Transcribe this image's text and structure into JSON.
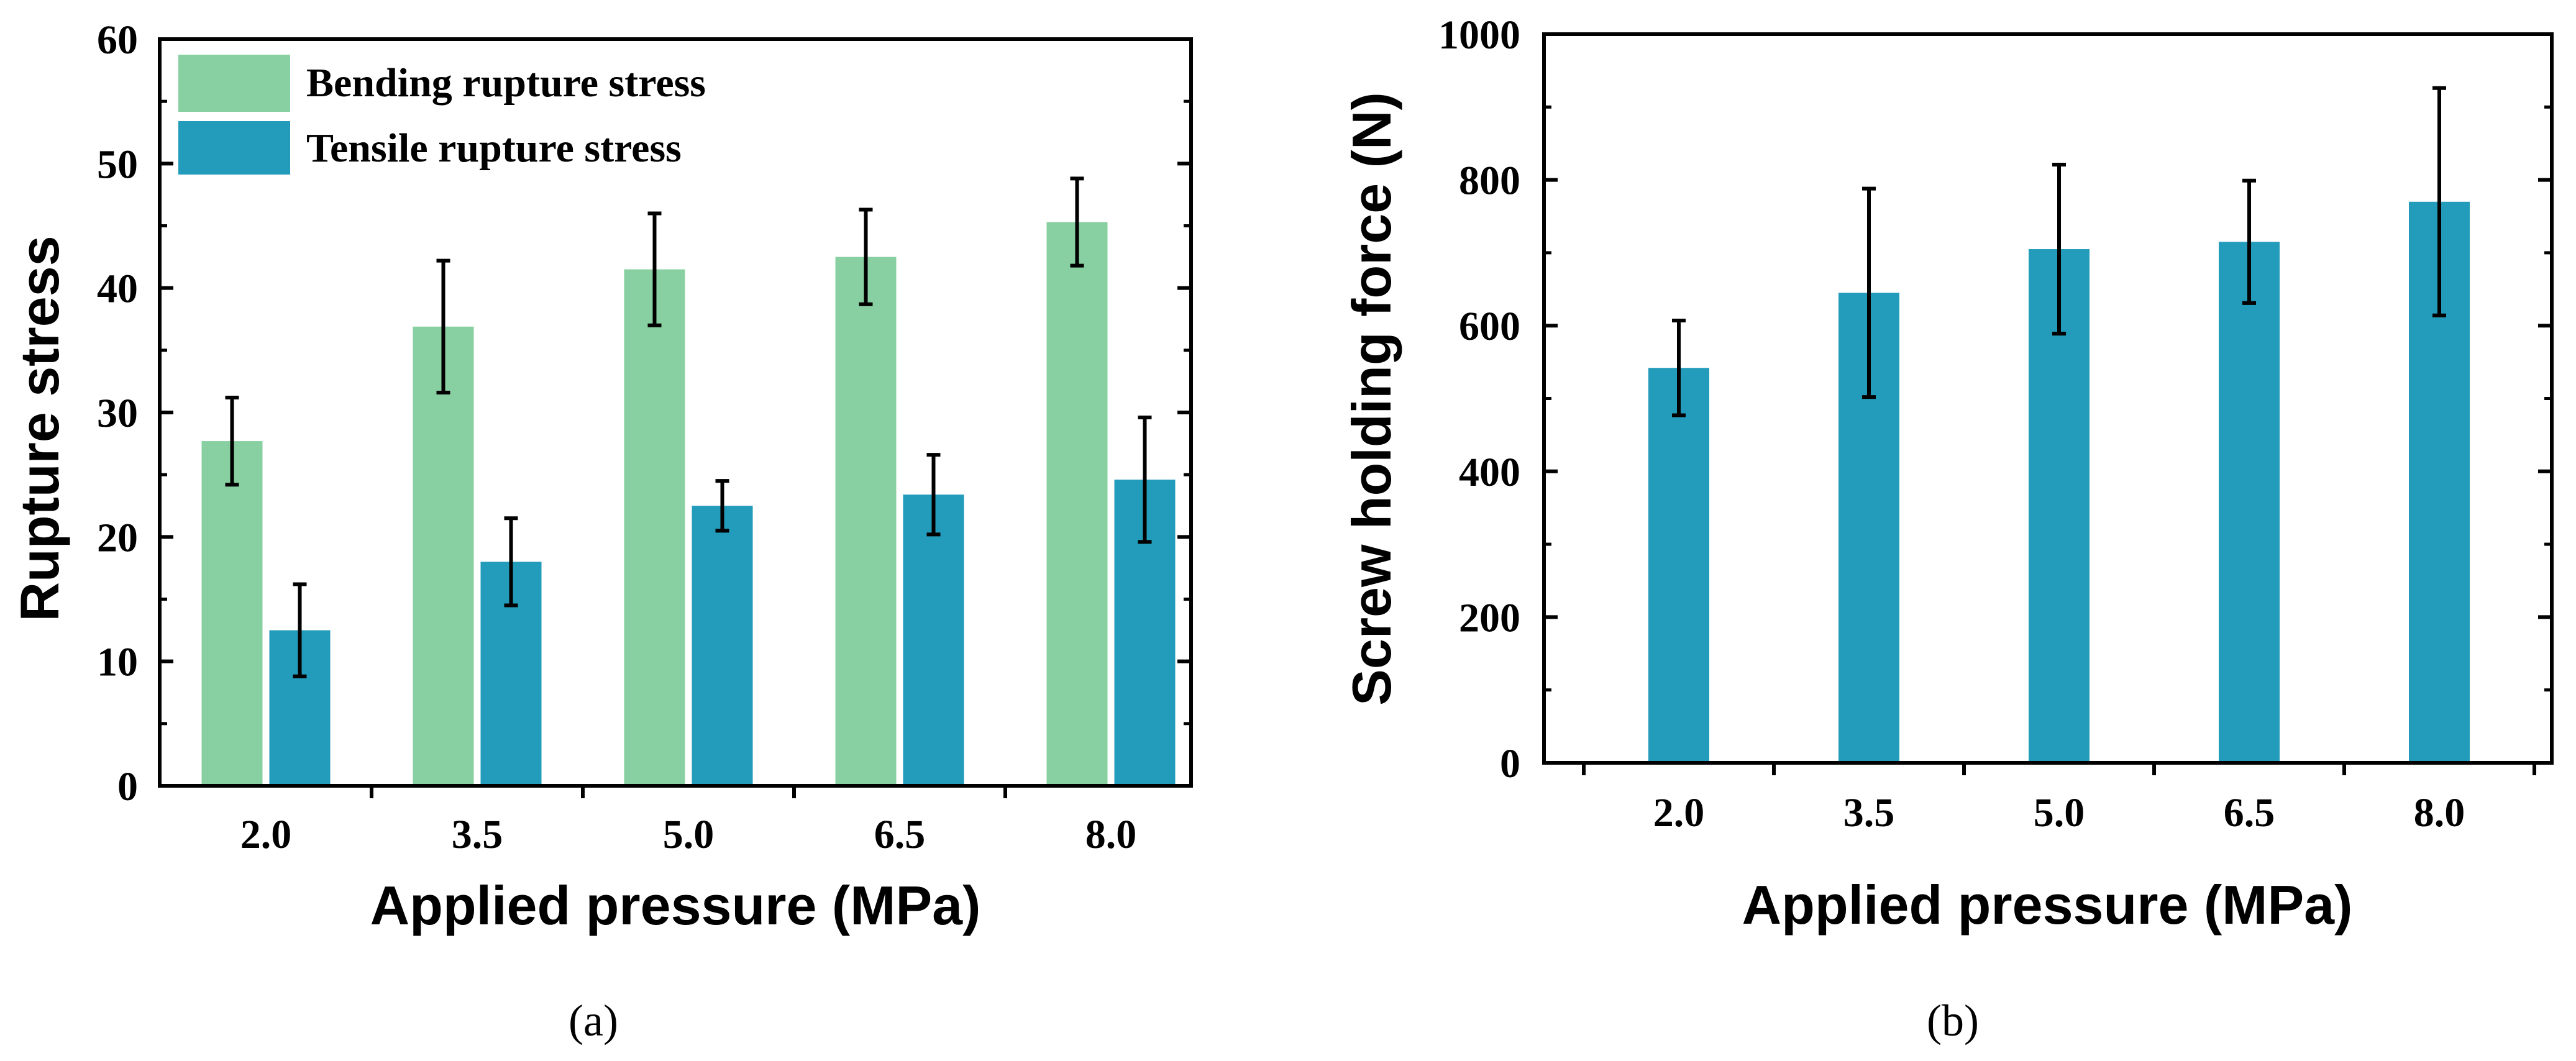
{
  "colors": {
    "bending": "#88d0a2",
    "tensile": "#239bba",
    "axis": "#000000"
  },
  "chart_data": [
    {
      "id": "a",
      "type": "bar",
      "panel_label": "(a)",
      "categories": [
        "2.0",
        "3.5",
        "5.0",
        "6.5",
        "8.0"
      ],
      "xlabel": "Applied pressure (MPa)",
      "ylabel": "Rupture stress",
      "ylim": [
        0,
        60
      ],
      "yticks": [
        0,
        10,
        20,
        30,
        40,
        50,
        60
      ],
      "ytick_labels": [
        "0",
        "10",
        "20",
        "30",
        "40",
        "50",
        "60"
      ],
      "legend_position": "top-left",
      "series": [
        {
          "name": "Bending rupture stress",
          "color_key": "bending",
          "values": [
            27.7,
            36.9,
            41.5,
            42.5,
            45.3
          ],
          "errors": [
            3.5,
            5.3,
            4.5,
            3.8,
            3.5
          ]
        },
        {
          "name": "Tensile rupture stress",
          "color_key": "tensile",
          "values": [
            12.5,
            18.0,
            22.5,
            23.4,
            24.6
          ],
          "errors": [
            3.7,
            3.5,
            2.0,
            3.2,
            5.0
          ]
        }
      ]
    },
    {
      "id": "b",
      "type": "bar",
      "panel_label": "(b)",
      "categories": [
        "2.0",
        "3.5",
        "5.0",
        "6.5",
        "8.0"
      ],
      "xlabel": "Applied pressure (MPa)",
      "ylabel": "Screw holding force (N)",
      "ylim": [
        0,
        1000
      ],
      "yticks": [
        0,
        200,
        400,
        600,
        800,
        1000
      ],
      "ytick_labels": [
        "0",
        "200",
        "400",
        "600",
        "800",
        "1000"
      ],
      "series": [
        {
          "name": "Screw holding force",
          "color_key": "tensile",
          "values": [
            542,
            645,
            705,
            715,
            770
          ],
          "errors": [
            65,
            143,
            116,
            84,
            156
          ]
        }
      ]
    }
  ]
}
